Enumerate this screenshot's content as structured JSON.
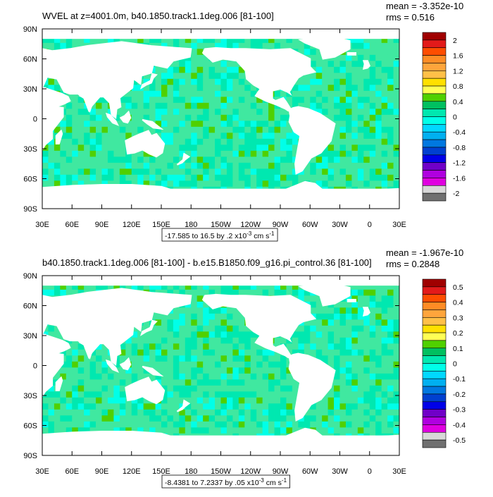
{
  "chart_data": [
    {
      "type": "heatmap",
      "title": "WVEL at z=4001.0m, b40.1850.track1.1deg.006 [81-100]",
      "stats": {
        "mean": "mean = -3.352e-10",
        "rms": "rms = 0.516"
      },
      "x_ticks": [
        "30E",
        "60E",
        "90E",
        "120E",
        "150E",
        "180",
        "150W",
        "120W",
        "90W",
        "60W",
        "30W",
        "0",
        "30E"
      ],
      "y_ticks": [
        "90N",
        "60N",
        "30N",
        "0",
        "30S",
        "60S",
        "90S"
      ],
      "xlim": [
        30,
        390
      ],
      "ylim": [
        -90,
        90
      ],
      "colorbar": {
        "labels": [
          "2",
          "1.6",
          "1.2",
          "0.8",
          "0.4",
          "0",
          "-0.4",
          "-0.8",
          "-1.2",
          "-1.6",
          "-2"
        ],
        "colors": [
          "#a00000",
          "#e21a1a",
          "#fe4d00",
          "#ff8c25",
          "#ffa53c",
          "#ffc048",
          "#ffe000",
          "#ffff55",
          "#50d000",
          "#00c060",
          "#00e8b0",
          "#00ffe8",
          "#00d8ff",
          "#00b0f0",
          "#0078e0",
          "#0040d0",
          "#0000e8",
          "#7000c8",
          "#b000e0",
          "#e000e0",
          "#d8d8d8",
          "#707070"
        ]
      },
      "range_label": "-17.585 to 16.5 by .2 x10-3 cm s-1",
      "range_parts": {
        "lead": "-17.585 to 16.5 by .2 x10",
        "exp1": "-3",
        "mid": " cm s",
        "exp2": "-1"
      }
    },
    {
      "type": "heatmap",
      "title": "b40.1850.track1.1deg.006 [81-100] - b.e15.B1850.f09_g16.pi_control.36 [81-100]",
      "stats": {
        "mean": "mean = -1.967e-10",
        "rms": "rms = 0.2848"
      },
      "x_ticks": [
        "30E",
        "60E",
        "90E",
        "120E",
        "150E",
        "180",
        "150W",
        "120W",
        "90W",
        "60W",
        "30W",
        "0",
        "30E"
      ],
      "y_ticks": [
        "90N",
        "60N",
        "30N",
        "0",
        "30S",
        "60S",
        "90S"
      ],
      "xlim": [
        30,
        390
      ],
      "ylim": [
        -90,
        90
      ],
      "colorbar": {
        "labels": [
          "0.5",
          "0.4",
          "0.3",
          "0.2",
          "0.1",
          "0",
          "-0.1",
          "-0.2",
          "-0.3",
          "-0.4",
          "-0.5"
        ],
        "colors": [
          "#a00000",
          "#e21a1a",
          "#fe4d00",
          "#ff8c25",
          "#ffa53c",
          "#ffc048",
          "#ffe000",
          "#ffff55",
          "#50d000",
          "#00c060",
          "#00e8b0",
          "#00ffe8",
          "#00d8ff",
          "#00b0f0",
          "#0078e0",
          "#0040d0",
          "#0000e8",
          "#7000c8",
          "#b000e0",
          "#e000e0",
          "#d8d8d8",
          "#707070"
        ]
      },
      "range_label": "-8.4381 to 7.2337 by .05 x10-3 cm s-1",
      "range_parts": {
        "lead": "-8.4381 to 7.2337 by .05 x10",
        "exp1": "-3",
        "mid": " cm s",
        "exp2": "-1"
      }
    }
  ],
  "ocean_color": "#40e8a0",
  "ocean_accent": "#00d0f0"
}
